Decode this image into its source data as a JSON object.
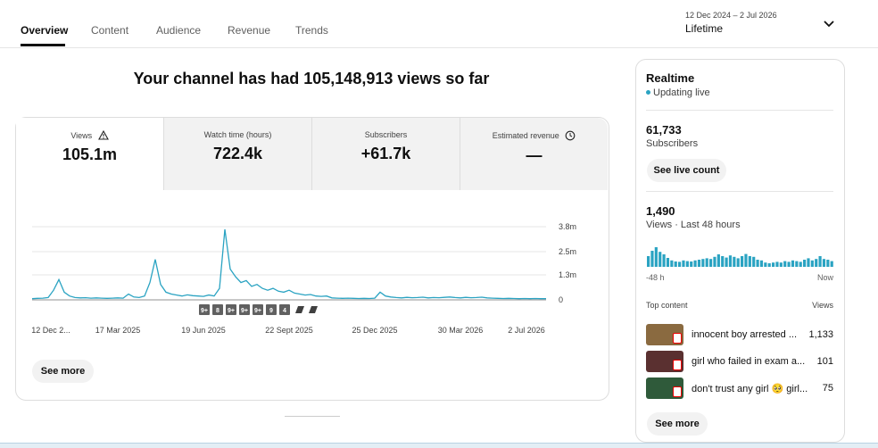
{
  "tabs": [
    "Overview",
    "Content",
    "Audience",
    "Revenue",
    "Trends"
  ],
  "date_range": {
    "range": "12 Dec 2024 – 2 Jul 2026",
    "period": "Lifetime"
  },
  "headline": "Your channel has had 105,148,913 views so far",
  "metrics": [
    {
      "label": "Views",
      "value": "105.1m"
    },
    {
      "label": "Watch time (hours)",
      "value": "722.4k"
    },
    {
      "label": "Subscribers",
      "value": "+61.7k"
    },
    {
      "label": "Estimated revenue",
      "value": "—"
    }
  ],
  "views_chart": {
    "type": "line",
    "color": "#2aa3c2",
    "ylim": [
      0,
      3800000
    ],
    "yticks": [
      {
        "value": 0,
        "label": "0"
      },
      {
        "value": 1300000,
        "label": "1.3m"
      },
      {
        "value": 2500000,
        "label": "2.5m"
      },
      {
        "value": 3800000,
        "label": "3.8m"
      }
    ],
    "xlabels": [
      "12 Dec 2...",
      "17 Mar 2025",
      "19 Jun 2025",
      "22 Sept 2025",
      "25 Dec 2025",
      "30 Mar 2026",
      "2 Jul 2026"
    ],
    "values": [
      60000,
      80000,
      90000,
      120000,
      500000,
      1050000,
      400000,
      200000,
      120000,
      100000,
      110000,
      90000,
      100000,
      90000,
      80000,
      90000,
      100000,
      90000,
      300000,
      150000,
      120000,
      200000,
      900000,
      2100000,
      800000,
      400000,
      300000,
      250000,
      200000,
      260000,
      220000,
      200000,
      180000,
      250000,
      200000,
      600000,
      3660000,
      1600000,
      1200000,
      900000,
      1000000,
      700000,
      800000,
      600000,
      500000,
      600000,
      450000,
      400000,
      500000,
      350000,
      300000,
      250000,
      280000,
      200000,
      180000,
      200000,
      100000,
      90000,
      80000,
      90000,
      80000,
      70000,
      80000,
      70000,
      90000,
      400000,
      200000,
      150000,
      120000,
      100000,
      130000,
      110000,
      120000,
      140000,
      100000,
      120000,
      110000,
      130000,
      150000,
      120000,
      100000,
      130000,
      110000,
      120000,
      140000,
      100000,
      90000,
      80000,
      70000,
      80000,
      70000,
      60000,
      70000,
      60000,
      70000,
      60000,
      60000
    ],
    "markers": [
      "9+",
      "8",
      "9+",
      "9+",
      "9+",
      "9",
      "4"
    ]
  },
  "see_more": "See more",
  "realtime": {
    "title": "Realtime",
    "status": "Updating live",
    "subscribers": {
      "value": "61,733",
      "label": "Subscribers",
      "button": "See live count"
    },
    "views": {
      "value": "1,490",
      "label": "Views · Last 48 hours",
      "bars": [
        30,
        45,
        55,
        42,
        35,
        25,
        18,
        15,
        14,
        18,
        16,
        15,
        18,
        20,
        22,
        24,
        22,
        28,
        35,
        30,
        26,
        32,
        28,
        24,
        30,
        36,
        30,
        28,
        20,
        18,
        12,
        10,
        12,
        14,
        12,
        16,
        14,
        18,
        16,
        14,
        20,
        24,
        18,
        22,
        30,
        22,
        20,
        16
      ],
      "start": "-48 h",
      "end": "Now"
    },
    "top_content": {
      "title": "Top content",
      "column": "Views",
      "rows": [
        {
          "title": "innocent boy arrested ...",
          "views": "1,133"
        },
        {
          "title": "girl who failed in exam a...",
          "views": "101"
        },
        {
          "title": "don't trust any girl 🥺 girl...",
          "views": "75"
        }
      ]
    },
    "button": "See more"
  }
}
